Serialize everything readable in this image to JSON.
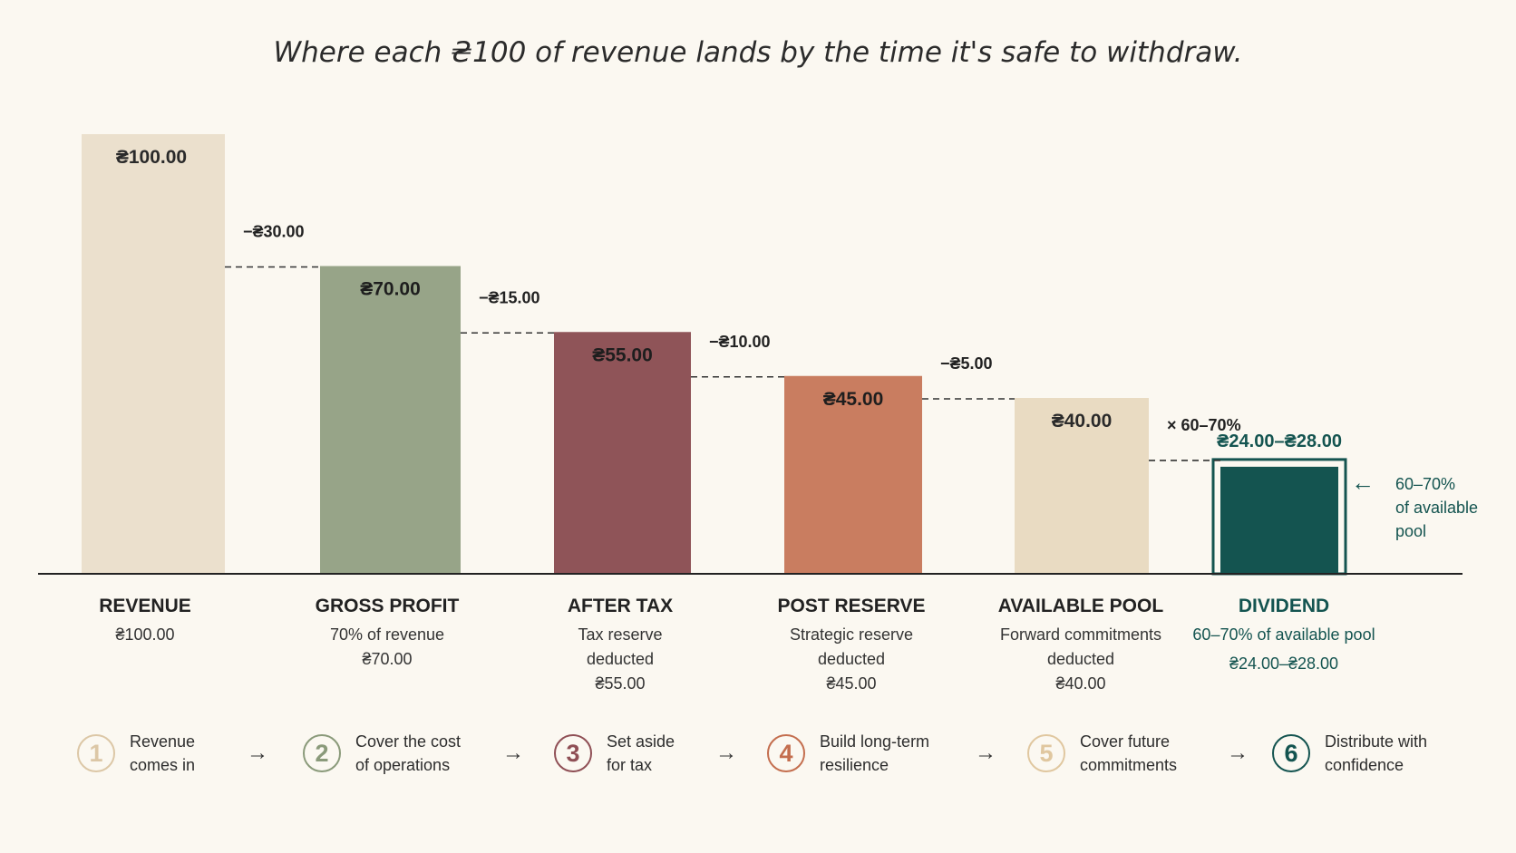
{
  "title": "Where each ₴100 of revenue lands by the time it's safe to withdraw.",
  "colors": {
    "revenue": "#ebe0cd",
    "gross_profit": "#97a488",
    "after_tax": "#8f5458",
    "post_reserve": "#c97d60",
    "available_pool": "#e9dbc2",
    "dividend": "#145450",
    "text": "#222222",
    "dividend_text": "#145450"
  },
  "chart_data": {
    "type": "bar",
    "subtype": "waterfall",
    "ylim": [
      0,
      100
    ],
    "categories": [
      "REVENUE",
      "GROSS PROFIT",
      "AFTER TAX",
      "POST RESERVE",
      "AVAILABLE POOL",
      "DIVIDEND"
    ],
    "values": [
      100,
      70,
      55,
      45,
      40,
      26
    ],
    "value_labels": [
      "₴100.00",
      "₴70.00",
      "₴55.00",
      "₴45.00",
      "₴40.00",
      "₴24.00–₴28.00"
    ],
    "dividend_range": [
      24,
      28
    ],
    "deltas": [
      "−₴30.00",
      "−₴15.00",
      "−₴10.00",
      "−₴5.00",
      "× 60–70%"
    ],
    "descriptions": [
      [
        "₴100.00"
      ],
      [
        "70% of revenue",
        "₴70.00"
      ],
      [
        "Tax reserve",
        "deducted",
        "₴55.00"
      ],
      [
        "Strategic reserve",
        "deducted",
        "₴45.00"
      ],
      [
        "Forward commitments",
        "deducted",
        "₴40.00"
      ],
      [
        "60–70% of available pool",
        "₴24.00–₴28.00"
      ]
    ],
    "annotation": [
      "60–70%",
      "of available",
      "pool"
    ]
  },
  "steps": [
    {
      "num": "1",
      "line1": "Revenue",
      "line2": "comes in",
      "color": "#dcc7a6"
    },
    {
      "num": "2",
      "line1": "Cover the cost",
      "line2": "of operations",
      "color": "#8a9a7a"
    },
    {
      "num": "3",
      "line1": "Set aside",
      "line2": "for tax",
      "color": "#8f4f55"
    },
    {
      "num": "4",
      "line1": "Build long-term",
      "line2": "resilience",
      "color": "#c46e4e"
    },
    {
      "num": "5",
      "line1": "Cover future",
      "line2": "commitments",
      "color": "#e0c79f"
    },
    {
      "num": "6",
      "line1": "Distribute with",
      "line2": "confidence",
      "color": "#145450"
    }
  ],
  "arrow_glyph": "→"
}
